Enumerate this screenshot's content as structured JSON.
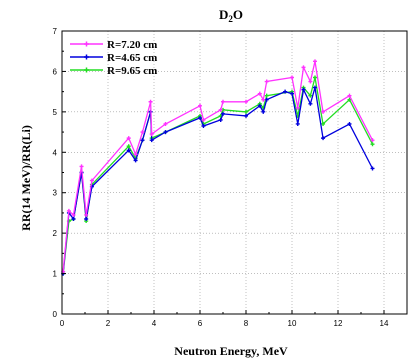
{
  "chart_data": {
    "type": "line",
    "title": "D",
    "title_sub": "2",
    "title_tail": "O",
    "xlabel": "Neutron Energy, MeV",
    "ylabel": "RR(14 MeV)/RR(Li)",
    "xlim": [
      0,
      15
    ],
    "ylim": [
      0,
      7
    ],
    "xticks": [
      "0",
      "2",
      "4",
      "6",
      "8",
      "10",
      "12",
      "14"
    ],
    "yticks": [
      "0",
      "1",
      "2",
      "3",
      "4",
      "5",
      "6",
      "7"
    ],
    "grid": true,
    "legend_position": "top-left",
    "series": [
      {
        "name": "R=7.20 cm",
        "color": "#ff33ff",
        "points": [
          [
            0.05,
            1.05
          ],
          [
            0.3,
            2.55
          ],
          [
            0.5,
            2.45
          ],
          [
            0.85,
            3.65
          ],
          [
            1.05,
            2.45
          ],
          [
            1.3,
            3.3
          ],
          [
            2.9,
            4.35
          ],
          [
            3.2,
            3.95
          ],
          [
            3.5,
            4.5
          ],
          [
            3.85,
            5.25
          ],
          [
            3.9,
            4.45
          ],
          [
            4.5,
            4.7
          ],
          [
            6.0,
            5.15
          ],
          [
            6.15,
            4.8
          ],
          [
            6.9,
            5.05
          ],
          [
            7.0,
            5.25
          ],
          [
            8.0,
            5.25
          ],
          [
            8.6,
            5.45
          ],
          [
            8.75,
            5.3
          ],
          [
            8.9,
            5.75
          ],
          [
            10.0,
            5.85
          ],
          [
            10.25,
            5.1
          ],
          [
            10.5,
            6.1
          ],
          [
            10.8,
            5.75
          ],
          [
            11.0,
            6.25
          ],
          [
            11.35,
            5.0
          ],
          [
            12.5,
            5.4
          ],
          [
            13.5,
            4.3
          ]
        ]
      },
      {
        "name": "R=4.65 cm",
        "color": "#0000dd",
        "points": [
          [
            0.05,
            1.0
          ],
          [
            0.3,
            2.5
          ],
          [
            0.5,
            2.35
          ],
          [
            0.85,
            3.5
          ],
          [
            1.05,
            2.35
          ],
          [
            1.3,
            3.15
          ],
          [
            2.9,
            4.05
          ],
          [
            3.2,
            3.8
          ],
          [
            3.5,
            4.3
          ],
          [
            3.85,
            5.0
          ],
          [
            3.9,
            4.3
          ],
          [
            4.5,
            4.5
          ],
          [
            6.0,
            4.85
          ],
          [
            6.15,
            4.65
          ],
          [
            6.9,
            4.8
          ],
          [
            7.0,
            4.95
          ],
          [
            8.0,
            4.9
          ],
          [
            8.6,
            5.15
          ],
          [
            8.75,
            5.0
          ],
          [
            8.9,
            5.3
          ],
          [
            9.7,
            5.5
          ],
          [
            10.0,
            5.45
          ],
          [
            10.25,
            4.7
          ],
          [
            10.5,
            5.55
          ],
          [
            10.8,
            5.2
          ],
          [
            11.0,
            5.6
          ],
          [
            11.35,
            4.35
          ],
          [
            12.5,
            4.7
          ],
          [
            13.5,
            3.6
          ]
        ]
      },
      {
        "name": "R=9.65 cm",
        "color": "#22dd22",
        "points": [
          [
            0.05,
            1.0
          ],
          [
            0.3,
            2.3
          ],
          [
            0.5,
            2.35
          ],
          [
            0.85,
            3.5
          ],
          [
            1.05,
            2.3
          ],
          [
            1.3,
            3.2
          ],
          [
            2.9,
            4.15
          ],
          [
            3.2,
            3.85
          ],
          [
            3.5,
            4.3
          ],
          [
            3.85,
            5.0
          ],
          [
            3.9,
            4.35
          ],
          [
            4.5,
            4.5
          ],
          [
            6.0,
            4.9
          ],
          [
            6.15,
            4.7
          ],
          [
            6.9,
            4.9
          ],
          [
            7.0,
            5.05
          ],
          [
            8.0,
            5.0
          ],
          [
            8.6,
            5.2
          ],
          [
            8.75,
            5.1
          ],
          [
            8.9,
            5.4
          ],
          [
            10.0,
            5.5
          ],
          [
            10.25,
            4.9
          ],
          [
            10.5,
            5.6
          ],
          [
            10.8,
            5.4
          ],
          [
            11.0,
            5.85
          ],
          [
            11.35,
            4.7
          ],
          [
            12.5,
            5.3
          ],
          [
            13.5,
            4.2
          ]
        ]
      }
    ]
  }
}
